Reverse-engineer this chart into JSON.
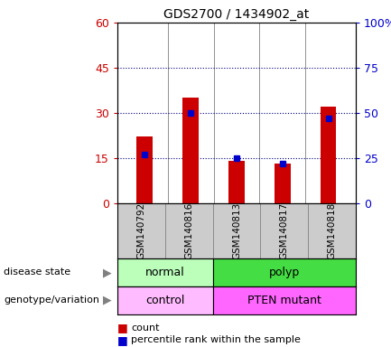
{
  "title": "GDS2700 / 1434902_at",
  "samples": [
    "GSM140792",
    "GSM140816",
    "GSM140813",
    "GSM140817",
    "GSM140818"
  ],
  "counts": [
    22,
    35,
    14,
    13,
    32
  ],
  "percentile_ranks": [
    27,
    50,
    25,
    22,
    47
  ],
  "left_ylim": [
    0,
    60
  ],
  "right_ylim": [
    0,
    100
  ],
  "left_yticks": [
    0,
    15,
    30,
    45,
    60
  ],
  "right_yticks": [
    0,
    25,
    50,
    75,
    100
  ],
  "right_yticklabels": [
    "0",
    "25",
    "50",
    "75",
    "100%"
  ],
  "bar_color": "#cc0000",
  "marker_color": "#0000cc",
  "disease_state": [
    {
      "label": "normal",
      "span": [
        0,
        2
      ],
      "color": "#bbffbb"
    },
    {
      "label": "polyp",
      "span": [
        2,
        5
      ],
      "color": "#44dd44"
    }
  ],
  "genotype": [
    {
      "label": "control",
      "span": [
        0,
        2
      ],
      "color": "#ffbbff"
    },
    {
      "label": "PTEN mutant",
      "span": [
        2,
        5
      ],
      "color": "#ff66ff"
    }
  ],
  "legend_count_label": "count",
  "legend_percentile_label": "percentile rank within the sample",
  "label_disease_state": "disease state",
  "label_genotype": "genotype/variation",
  "background_color": "#ffffff",
  "plot_bg_color": "#ffffff",
  "label_area_bg": "#cccccc"
}
